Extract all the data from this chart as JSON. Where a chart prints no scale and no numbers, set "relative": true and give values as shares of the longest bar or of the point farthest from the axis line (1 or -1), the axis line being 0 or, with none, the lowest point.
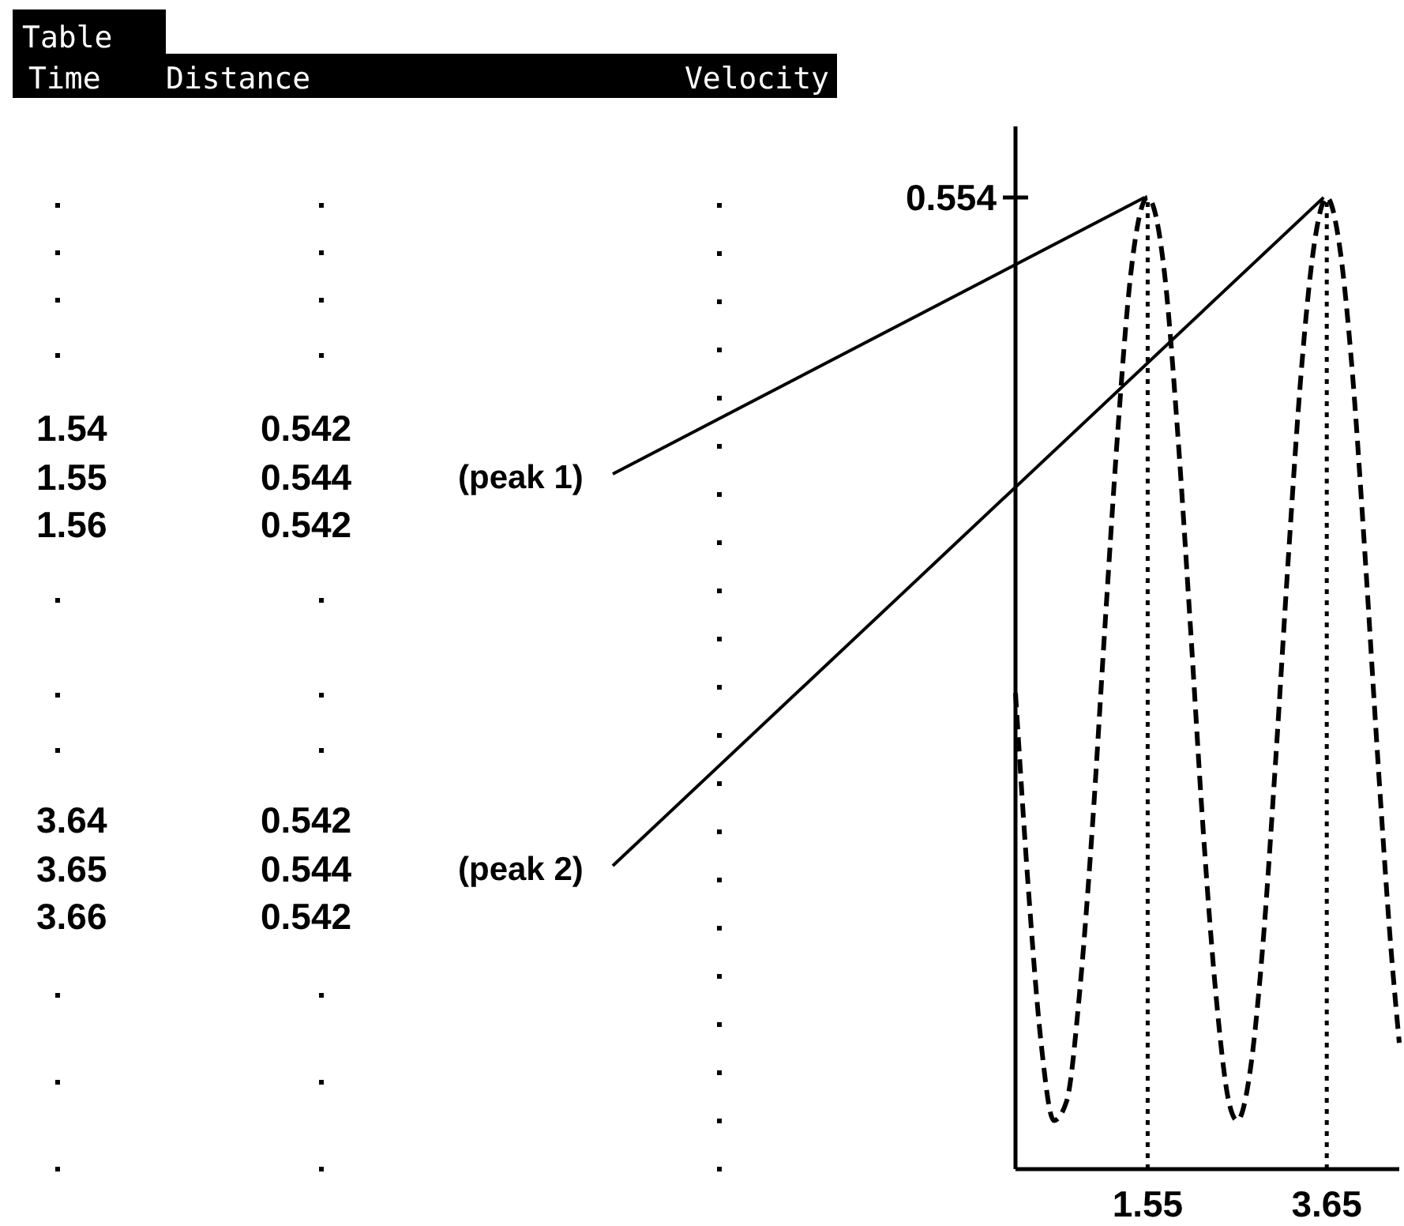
{
  "chart_data": {
    "type": "line",
    "relative": true,
    "line_style": "dashed",
    "x": [
      0,
      0.15,
      0.3,
      0.45,
      0.6,
      0.75,
      0.9,
      1.05,
      1.2,
      1.35,
      1.55,
      1.75,
      1.9,
      2.05,
      2.2,
      2.35,
      2.5,
      2.6,
      2.75,
      2.9,
      3.05,
      3.2,
      3.35,
      3.5,
      3.65,
      3.8,
      3.95,
      4.1,
      4.25,
      4.4,
      4.5
    ],
    "series": [
      {
        "color": "#000000",
        "values": [
          0.49,
          0.29,
          0.13,
          0.05,
          0.07,
          0.18,
          0.35,
          0.56,
          0.76,
          0.92,
          1,
          0.92,
          0.76,
          0.56,
          0.35,
          0.18,
          0.07,
          0.05,
          0.1,
          0.23,
          0.42,
          0.63,
          0.82,
          0.95,
          1,
          0.95,
          0.82,
          0.63,
          0.42,
          0.23,
          0.13
        ]
      }
    ],
    "xlim": [
      0,
      4.5
    ],
    "xticks": [
      1.55,
      3.65
    ],
    "tick_labels": "x",
    "ref_lines": [
      {
        "axis": "x",
        "value": 1.55,
        "line_style": "dotted"
      },
      {
        "axis": "x",
        "value": 3.65,
        "line_style": "dotted"
      }
    ],
    "annotations": [
      "Table",
      "Time",
      "Distance",
      "Velocity",
      "1.54",
      "0.542",
      "1.55",
      "0.544",
      "1.56",
      "0.542",
      "3.64",
      "0.542",
      "3.65",
      "0.544",
      "3.66",
      "0.542",
      "0.554",
      {
        "text": "(peak 1)",
        "x": 1.55,
        "y": 1
      },
      {
        "text": "(peak 2)",
        "x": 3.65,
        "y": 1
      }
    ]
  }
}
